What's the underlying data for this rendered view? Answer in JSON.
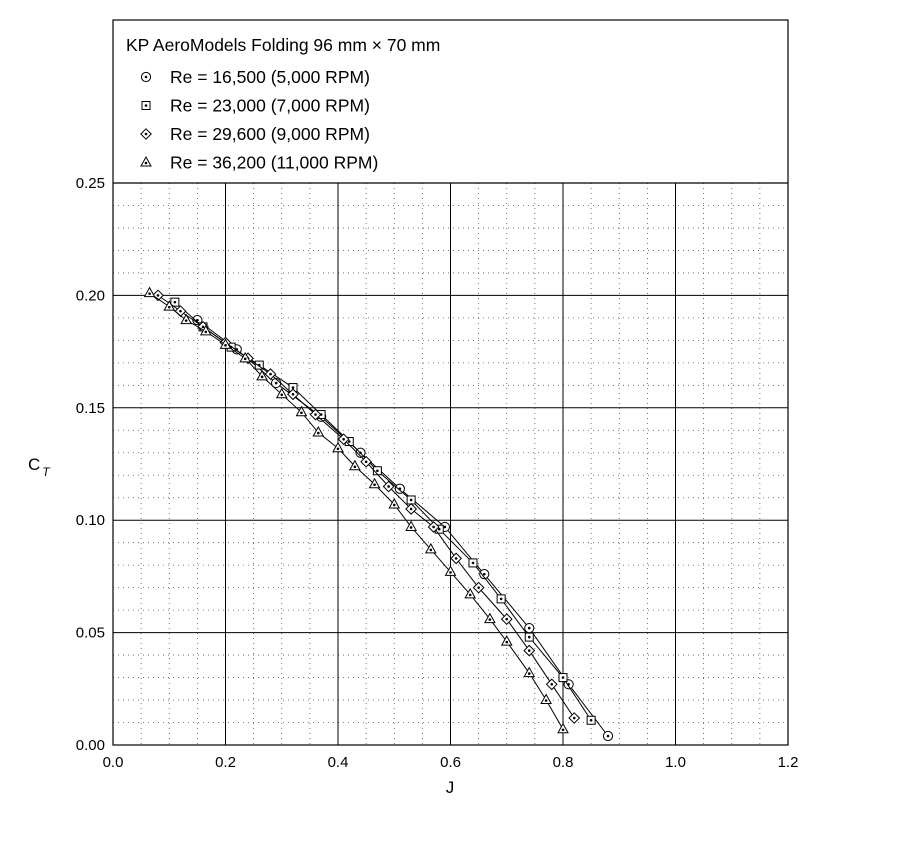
{
  "chart_data": {
    "type": "line",
    "title": "KP AeroModels Folding 96 mm × 70 mm",
    "xlabel": "J",
    "ylabel_main": "C",
    "ylabel_sub": "T",
    "xlim": [
      0.0,
      1.2
    ],
    "ylim": [
      0.0,
      0.25
    ],
    "xticks": [
      "0.0",
      "0.2",
      "0.4",
      "0.6",
      "0.8",
      "1.0",
      "1.2"
    ],
    "yticks": [
      "0.00",
      "0.05",
      "0.10",
      "0.15",
      "0.20",
      "0.25"
    ],
    "grid": "major solid, minor dotted",
    "legend_position": "top, inside box above plot",
    "series": [
      {
        "name": "Re = 16,500 (5,000 RPM)",
        "marker": "circle-dot",
        "x": [
          0.15,
          0.22,
          0.29,
          0.37,
          0.44,
          0.51,
          0.59,
          0.66,
          0.74,
          0.81,
          0.88
        ],
        "y": [
          0.189,
          0.176,
          0.161,
          0.146,
          0.13,
          0.114,
          0.097,
          0.076,
          0.052,
          0.027,
          0.004
        ]
      },
      {
        "name": "Re = 23,000 (7,000 RPM)",
        "marker": "square-dot",
        "x": [
          0.11,
          0.16,
          0.21,
          0.26,
          0.32,
          0.37,
          0.42,
          0.47,
          0.53,
          0.58,
          0.64,
          0.69,
          0.74,
          0.8,
          0.85
        ],
        "y": [
          0.197,
          0.186,
          0.177,
          0.169,
          0.159,
          0.147,
          0.135,
          0.122,
          0.109,
          0.096,
          0.081,
          0.065,
          0.048,
          0.03,
          0.011
        ]
      },
      {
        "name": "Re = 29,600 (9,000 RPM)",
        "marker": "diamond-dot",
        "x": [
          0.08,
          0.12,
          0.16,
          0.2,
          0.24,
          0.28,
          0.32,
          0.36,
          0.41,
          0.45,
          0.49,
          0.53,
          0.57,
          0.61,
          0.65,
          0.7,
          0.74,
          0.78,
          0.82
        ],
        "y": [
          0.2,
          0.193,
          0.186,
          0.179,
          0.172,
          0.165,
          0.156,
          0.147,
          0.136,
          0.126,
          0.115,
          0.105,
          0.097,
          0.083,
          0.07,
          0.056,
          0.042,
          0.027,
          0.012
        ]
      },
      {
        "name": "Re = 36,200 (11,000 RPM)",
        "marker": "triangle-dot",
        "x": [
          0.065,
          0.1,
          0.13,
          0.165,
          0.2,
          0.235,
          0.265,
          0.3,
          0.335,
          0.365,
          0.4,
          0.43,
          0.465,
          0.5,
          0.53,
          0.565,
          0.6,
          0.635,
          0.67,
          0.7,
          0.74,
          0.77,
          0.8
        ],
        "y": [
          0.201,
          0.195,
          0.189,
          0.184,
          0.178,
          0.172,
          0.164,
          0.156,
          0.148,
          0.139,
          0.132,
          0.124,
          0.116,
          0.107,
          0.097,
          0.087,
          0.077,
          0.067,
          0.056,
          0.046,
          0.032,
          0.02,
          0.007
        ]
      }
    ]
  }
}
